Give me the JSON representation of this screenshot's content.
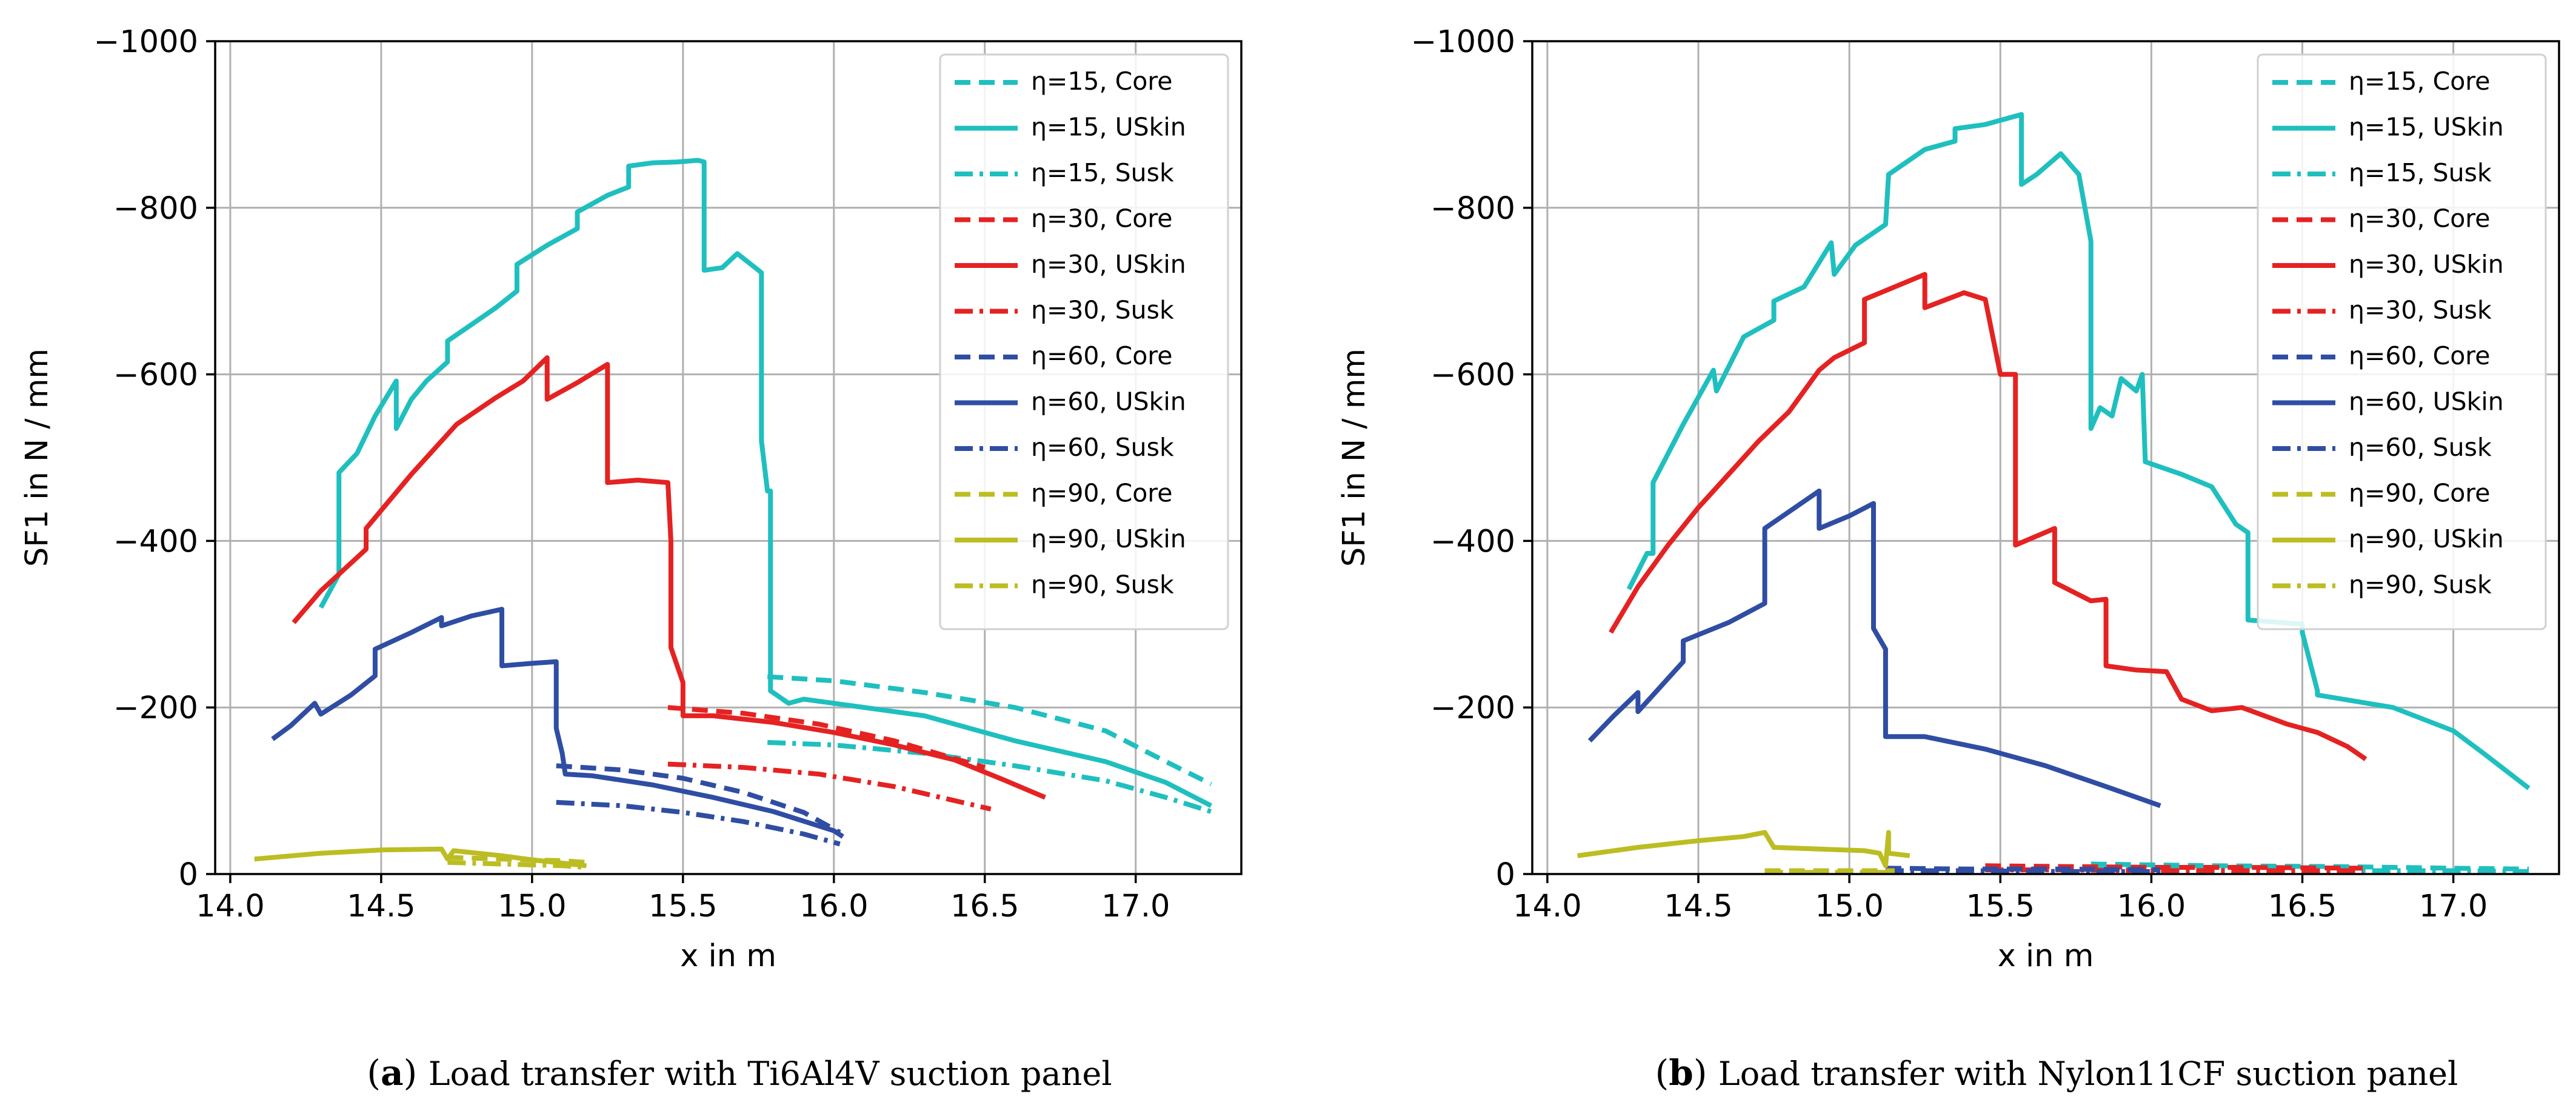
{
  "chart_data": [
    {
      "type": "line",
      "panel": "(a)",
      "caption_tag": "a",
      "caption": "Load transfer with Ti6Al4V suction panel",
      "xlabel": "x in m",
      "ylabel": "SF1 in N / mm",
      "xlim": [
        13.95,
        17.35
      ],
      "ylim": [
        0,
        -1000
      ],
      "y_inverted": true,
      "xticks": [
        14.0,
        14.5,
        15.0,
        15.5,
        16.0,
        16.5,
        17.0
      ],
      "xtick_labels": [
        "14.0",
        "14.5",
        "15.0",
        "15.5",
        "16.0",
        "16.5",
        "17.0"
      ],
      "yticks": [
        0,
        -200,
        -400,
        -600,
        -800,
        -1000
      ],
      "ytick_labels": [
        "0",
        "−200",
        "−400",
        "−600",
        "−800",
        "−1000"
      ],
      "grid": true,
      "legend_position": "top-right",
      "series": [
        {
          "name": "η=15, Core",
          "color": "#1fbfbf",
          "style": "dashed",
          "x": [
            15.78,
            16.0,
            16.3,
            16.6,
            16.9,
            17.1,
            17.25
          ],
          "y": [
            -237,
            -232,
            -218,
            -200,
            -172,
            -135,
            -108
          ]
        },
        {
          "name": "η=15, USkin",
          "color": "#1fbfbf",
          "style": "solid",
          "x": [
            14.3,
            14.36,
            14.36,
            14.42,
            14.48,
            14.55,
            14.55,
            14.6,
            14.65,
            14.72,
            14.72,
            14.8,
            14.88,
            14.95,
            14.95,
            15.05,
            15.15,
            15.15,
            15.25,
            15.32,
            15.32,
            15.4,
            15.48,
            15.55,
            15.57,
            15.57,
            15.63,
            15.68,
            15.75,
            15.76,
            15.76,
            15.78,
            15.79,
            15.79,
            15.81,
            15.85,
            15.9,
            16.0,
            16.3,
            16.6,
            16.9,
            17.1,
            17.25
          ],
          "y": [
            -320,
            -360,
            -482,
            -505,
            -550,
            -592,
            -535,
            -570,
            -592,
            -615,
            -640,
            -660,
            -680,
            -700,
            -732,
            -755,
            -775,
            -795,
            -815,
            -825,
            -850,
            -854,
            -855,
            -857,
            -855,
            -725,
            -728,
            -745,
            -725,
            -722,
            -520,
            -460,
            -460,
            -220,
            -215,
            -205,
            -210,
            -205,
            -190,
            -160,
            -135,
            -110,
            -82
          ]
        },
        {
          "name": "η=15, Susk",
          "color": "#1fbfbf",
          "style": "dashdot",
          "x": [
            15.78,
            16.0,
            16.3,
            16.6,
            16.9,
            17.1,
            17.25
          ],
          "y": [
            -158,
            -155,
            -145,
            -130,
            -112,
            -92,
            -75
          ]
        },
        {
          "name": "η=30, Core",
          "color": "#e52222",
          "style": "dashed",
          "x": [
            15.45,
            15.7,
            15.95,
            16.2,
            16.5
          ],
          "y": [
            -200,
            -193,
            -180,
            -160,
            -128
          ]
        },
        {
          "name": "η=30, USkin",
          "color": "#e52222",
          "style": "solid",
          "x": [
            14.21,
            14.3,
            14.45,
            14.45,
            14.6,
            14.75,
            14.88,
            14.97,
            15.05,
            15.05,
            15.15,
            15.25,
            15.25,
            15.35,
            15.45,
            15.46,
            15.46,
            15.5,
            15.5,
            15.6,
            15.8,
            16.0,
            16.2,
            16.4,
            16.55,
            16.7
          ],
          "y": [
            -302,
            -340,
            -390,
            -415,
            -480,
            -540,
            -572,
            -592,
            -620,
            -570,
            -590,
            -612,
            -470,
            -473,
            -470,
            -400,
            -272,
            -230,
            -190,
            -190,
            -182,
            -170,
            -155,
            -137,
            -115,
            -92
          ]
        },
        {
          "name": "η=30, Susk",
          "color": "#e52222",
          "style": "dashdot",
          "x": [
            15.45,
            15.7,
            15.95,
            16.2,
            16.52
          ],
          "y": [
            -132,
            -128,
            -120,
            -105,
            -78
          ]
        },
        {
          "name": "η=60, Core",
          "color": "#2f4da3",
          "style": "dashed",
          "x": [
            15.08,
            15.3,
            15.5,
            15.7,
            15.9,
            16.02
          ],
          "y": [
            -130,
            -125,
            -115,
            -98,
            -74,
            -50
          ]
        },
        {
          "name": "η=60, USkin",
          "color": "#2f4da3",
          "style": "solid",
          "x": [
            14.14,
            14.2,
            14.28,
            14.3,
            14.4,
            14.48,
            14.48,
            14.6,
            14.7,
            14.7,
            14.8,
            14.9,
            14.9,
            15.0,
            15.08,
            15.08,
            15.1,
            15.11,
            15.2,
            15.4,
            15.6,
            15.8,
            16.0,
            16.03
          ],
          "y": [
            -162,
            -178,
            -205,
            -192,
            -215,
            -238,
            -270,
            -290,
            -308,
            -298,
            -310,
            -318,
            -250,
            -253,
            -255,
            -175,
            -145,
            -120,
            -118,
            -107,
            -92,
            -75,
            -52,
            -45
          ]
        },
        {
          "name": "η=60, Susk",
          "color": "#2f4da3",
          "style": "dashdot",
          "x": [
            15.08,
            15.3,
            15.5,
            15.7,
            15.9,
            16.02
          ],
          "y": [
            -86,
            -82,
            -74,
            -63,
            -48,
            -36
          ]
        },
        {
          "name": "η=90, Core",
          "color": "#bcbd22",
          "style": "dashed",
          "x": [
            14.72,
            14.9,
            15.1,
            15.18
          ],
          "y": [
            -20,
            -18,
            -16,
            -14
          ]
        },
        {
          "name": "η=90, USkin",
          "color": "#bcbd22",
          "style": "solid",
          "x": [
            14.08,
            14.3,
            14.5,
            14.7,
            14.72,
            14.74,
            14.9,
            15.0,
            15.18
          ],
          "y": [
            -18,
            -25,
            -29,
            -30,
            -18,
            -28,
            -22,
            -17,
            -10
          ]
        },
        {
          "name": "η=90, Susk",
          "color": "#bcbd22",
          "style": "dashdot",
          "x": [
            14.72,
            14.9,
            15.1,
            15.18
          ],
          "y": [
            -14,
            -12,
            -10,
            -8
          ]
        }
      ]
    },
    {
      "type": "line",
      "panel": "(b)",
      "caption_tag": "b",
      "caption": "Load transfer with Nylon11CF suction panel",
      "xlabel": "x in m",
      "ylabel": "SF1 in N / mm",
      "xlim": [
        13.95,
        17.35
      ],
      "ylim": [
        0,
        -1000
      ],
      "y_inverted": true,
      "xticks": [
        14.0,
        14.5,
        15.0,
        15.5,
        16.0,
        16.5,
        17.0
      ],
      "xtick_labels": [
        "14.0",
        "14.5",
        "15.0",
        "15.5",
        "16.0",
        "16.5",
        "17.0"
      ],
      "yticks": [
        0,
        -200,
        -400,
        -600,
        -800,
        -1000
      ],
      "ytick_labels": [
        "0",
        "−200",
        "−400",
        "−600",
        "−800",
        "−1000"
      ],
      "grid": true,
      "legend_position": "top-right",
      "series": [
        {
          "name": "η=15, Core",
          "color": "#1fbfbf",
          "style": "dashed",
          "x": [
            15.8,
            16.2,
            16.6,
            17.0,
            17.25
          ],
          "y": [
            -12,
            -10,
            -9,
            -7,
            -6
          ]
        },
        {
          "name": "η=15, USkin",
          "color": "#1fbfbf",
          "style": "solid",
          "x": [
            14.27,
            14.33,
            14.35,
            14.35,
            14.45,
            14.55,
            14.56,
            14.65,
            14.75,
            14.75,
            14.85,
            14.94,
            14.95,
            15.02,
            15.12,
            15.13,
            15.25,
            15.35,
            15.35,
            15.45,
            15.57,
            15.57,
            15.62,
            15.7,
            15.76,
            15.8,
            15.8,
            15.83,
            15.87,
            15.9,
            15.95,
            15.97,
            15.98,
            16.1,
            16.2,
            16.28,
            16.32,
            16.32,
            16.5,
            16.5,
            16.55,
            16.55,
            16.8,
            17.0,
            17.1,
            17.25
          ],
          "y": [
            -342,
            -385,
            -385,
            -470,
            -540,
            -605,
            -580,
            -645,
            -665,
            -688,
            -705,
            -758,
            -720,
            -755,
            -780,
            -840,
            -870,
            -880,
            -895,
            -900,
            -912,
            -828,
            -840,
            -865,
            -840,
            -760,
            -535,
            -560,
            -550,
            -595,
            -580,
            -600,
            -495,
            -480,
            -465,
            -420,
            -410,
            -305,
            -300,
            -290,
            -220,
            -215,
            -200,
            -172,
            -145,
            -103
          ]
        },
        {
          "name": "η=15, Susk",
          "color": "#1fbfbf",
          "style": "dashdot",
          "x": [
            15.8,
            16.2,
            16.6,
            17.0,
            17.25
          ],
          "y": [
            -6,
            -5,
            -4,
            -4,
            -3
          ]
        },
        {
          "name": "η=30, Core",
          "color": "#e52222",
          "style": "dashed",
          "x": [
            15.45,
            15.7,
            16.0,
            16.3,
            16.7
          ],
          "y": [
            -10,
            -9,
            -8,
            -8,
            -7
          ]
        },
        {
          "name": "η=30, USkin",
          "color": "#e52222",
          "style": "solid",
          "x": [
            14.21,
            14.3,
            14.4,
            14.5,
            14.6,
            14.7,
            14.8,
            14.85,
            14.9,
            14.95,
            15.05,
            15.05,
            15.15,
            15.25,
            15.25,
            15.38,
            15.45,
            15.5,
            15.55,
            15.55,
            15.68,
            15.68,
            15.8,
            15.85,
            15.85,
            15.95,
            16.05,
            16.1,
            16.2,
            16.3,
            16.45,
            16.55,
            16.65,
            16.71
          ],
          "y": [
            -290,
            -345,
            -395,
            -440,
            -480,
            -520,
            -555,
            -580,
            -605,
            -620,
            -638,
            -690,
            -705,
            -720,
            -680,
            -698,
            -690,
            -600,
            -600,
            -395,
            -415,
            -350,
            -328,
            -330,
            -250,
            -245,
            -243,
            -210,
            -196,
            -200,
            -180,
            -170,
            -153,
            -138
          ]
        },
        {
          "name": "η=30, Susk",
          "color": "#e52222",
          "style": "dashdot",
          "x": [
            15.45,
            15.7,
            16.0,
            16.3,
            16.7
          ],
          "y": [
            -5,
            -5,
            -4,
            -4,
            -4
          ]
        },
        {
          "name": "η=60, Core",
          "color": "#2f4da3",
          "style": "dashed",
          "x": [
            15.12,
            15.4,
            15.7,
            16.03
          ],
          "y": [
            -7,
            -6,
            -6,
            -5
          ]
        },
        {
          "name": "η=60, USkin",
          "color": "#2f4da3",
          "style": "solid",
          "x": [
            14.14,
            14.22,
            14.3,
            14.3,
            14.45,
            14.45,
            14.6,
            14.72,
            14.72,
            14.82,
            14.9,
            14.9,
            15.0,
            15.08,
            15.08,
            15.12,
            15.12,
            15.25,
            15.45,
            15.65,
            15.85,
            16.03
          ],
          "y": [
            -160,
            -190,
            -218,
            -195,
            -255,
            -280,
            -302,
            -325,
            -415,
            -440,
            -460,
            -415,
            -430,
            -445,
            -295,
            -270,
            -165,
            -165,
            -150,
            -130,
            -105,
            -82
          ]
        },
        {
          "name": "η=60, Susk",
          "color": "#2f4da3",
          "style": "dashdot",
          "x": [
            15.12,
            15.4,
            15.7,
            16.03
          ],
          "y": [
            -4,
            -4,
            -3,
            -3
          ]
        },
        {
          "name": "η=90, Core",
          "color": "#bcbd22",
          "style": "dashed",
          "x": [
            14.72,
            14.9,
            15.1,
            15.15
          ],
          "y": [
            -4,
            -4,
            -4,
            -4
          ]
        },
        {
          "name": "η=90, USkin",
          "color": "#bcbd22",
          "style": "solid",
          "x": [
            14.1,
            14.3,
            14.5,
            14.65,
            14.72,
            14.75,
            14.9,
            15.05,
            15.1,
            15.12,
            15.13,
            15.13,
            15.2
          ],
          "y": [
            -22,
            -32,
            -40,
            -45,
            -50,
            -32,
            -30,
            -28,
            -25,
            -10,
            -50,
            -25,
            -22
          ]
        },
        {
          "name": "η=90, Susk",
          "color": "#bcbd22",
          "style": "dashdot",
          "x": [
            14.72,
            14.9,
            15.1,
            15.15
          ],
          "y": [
            -2,
            -2,
            -2,
            -2
          ]
        }
      ]
    }
  ]
}
